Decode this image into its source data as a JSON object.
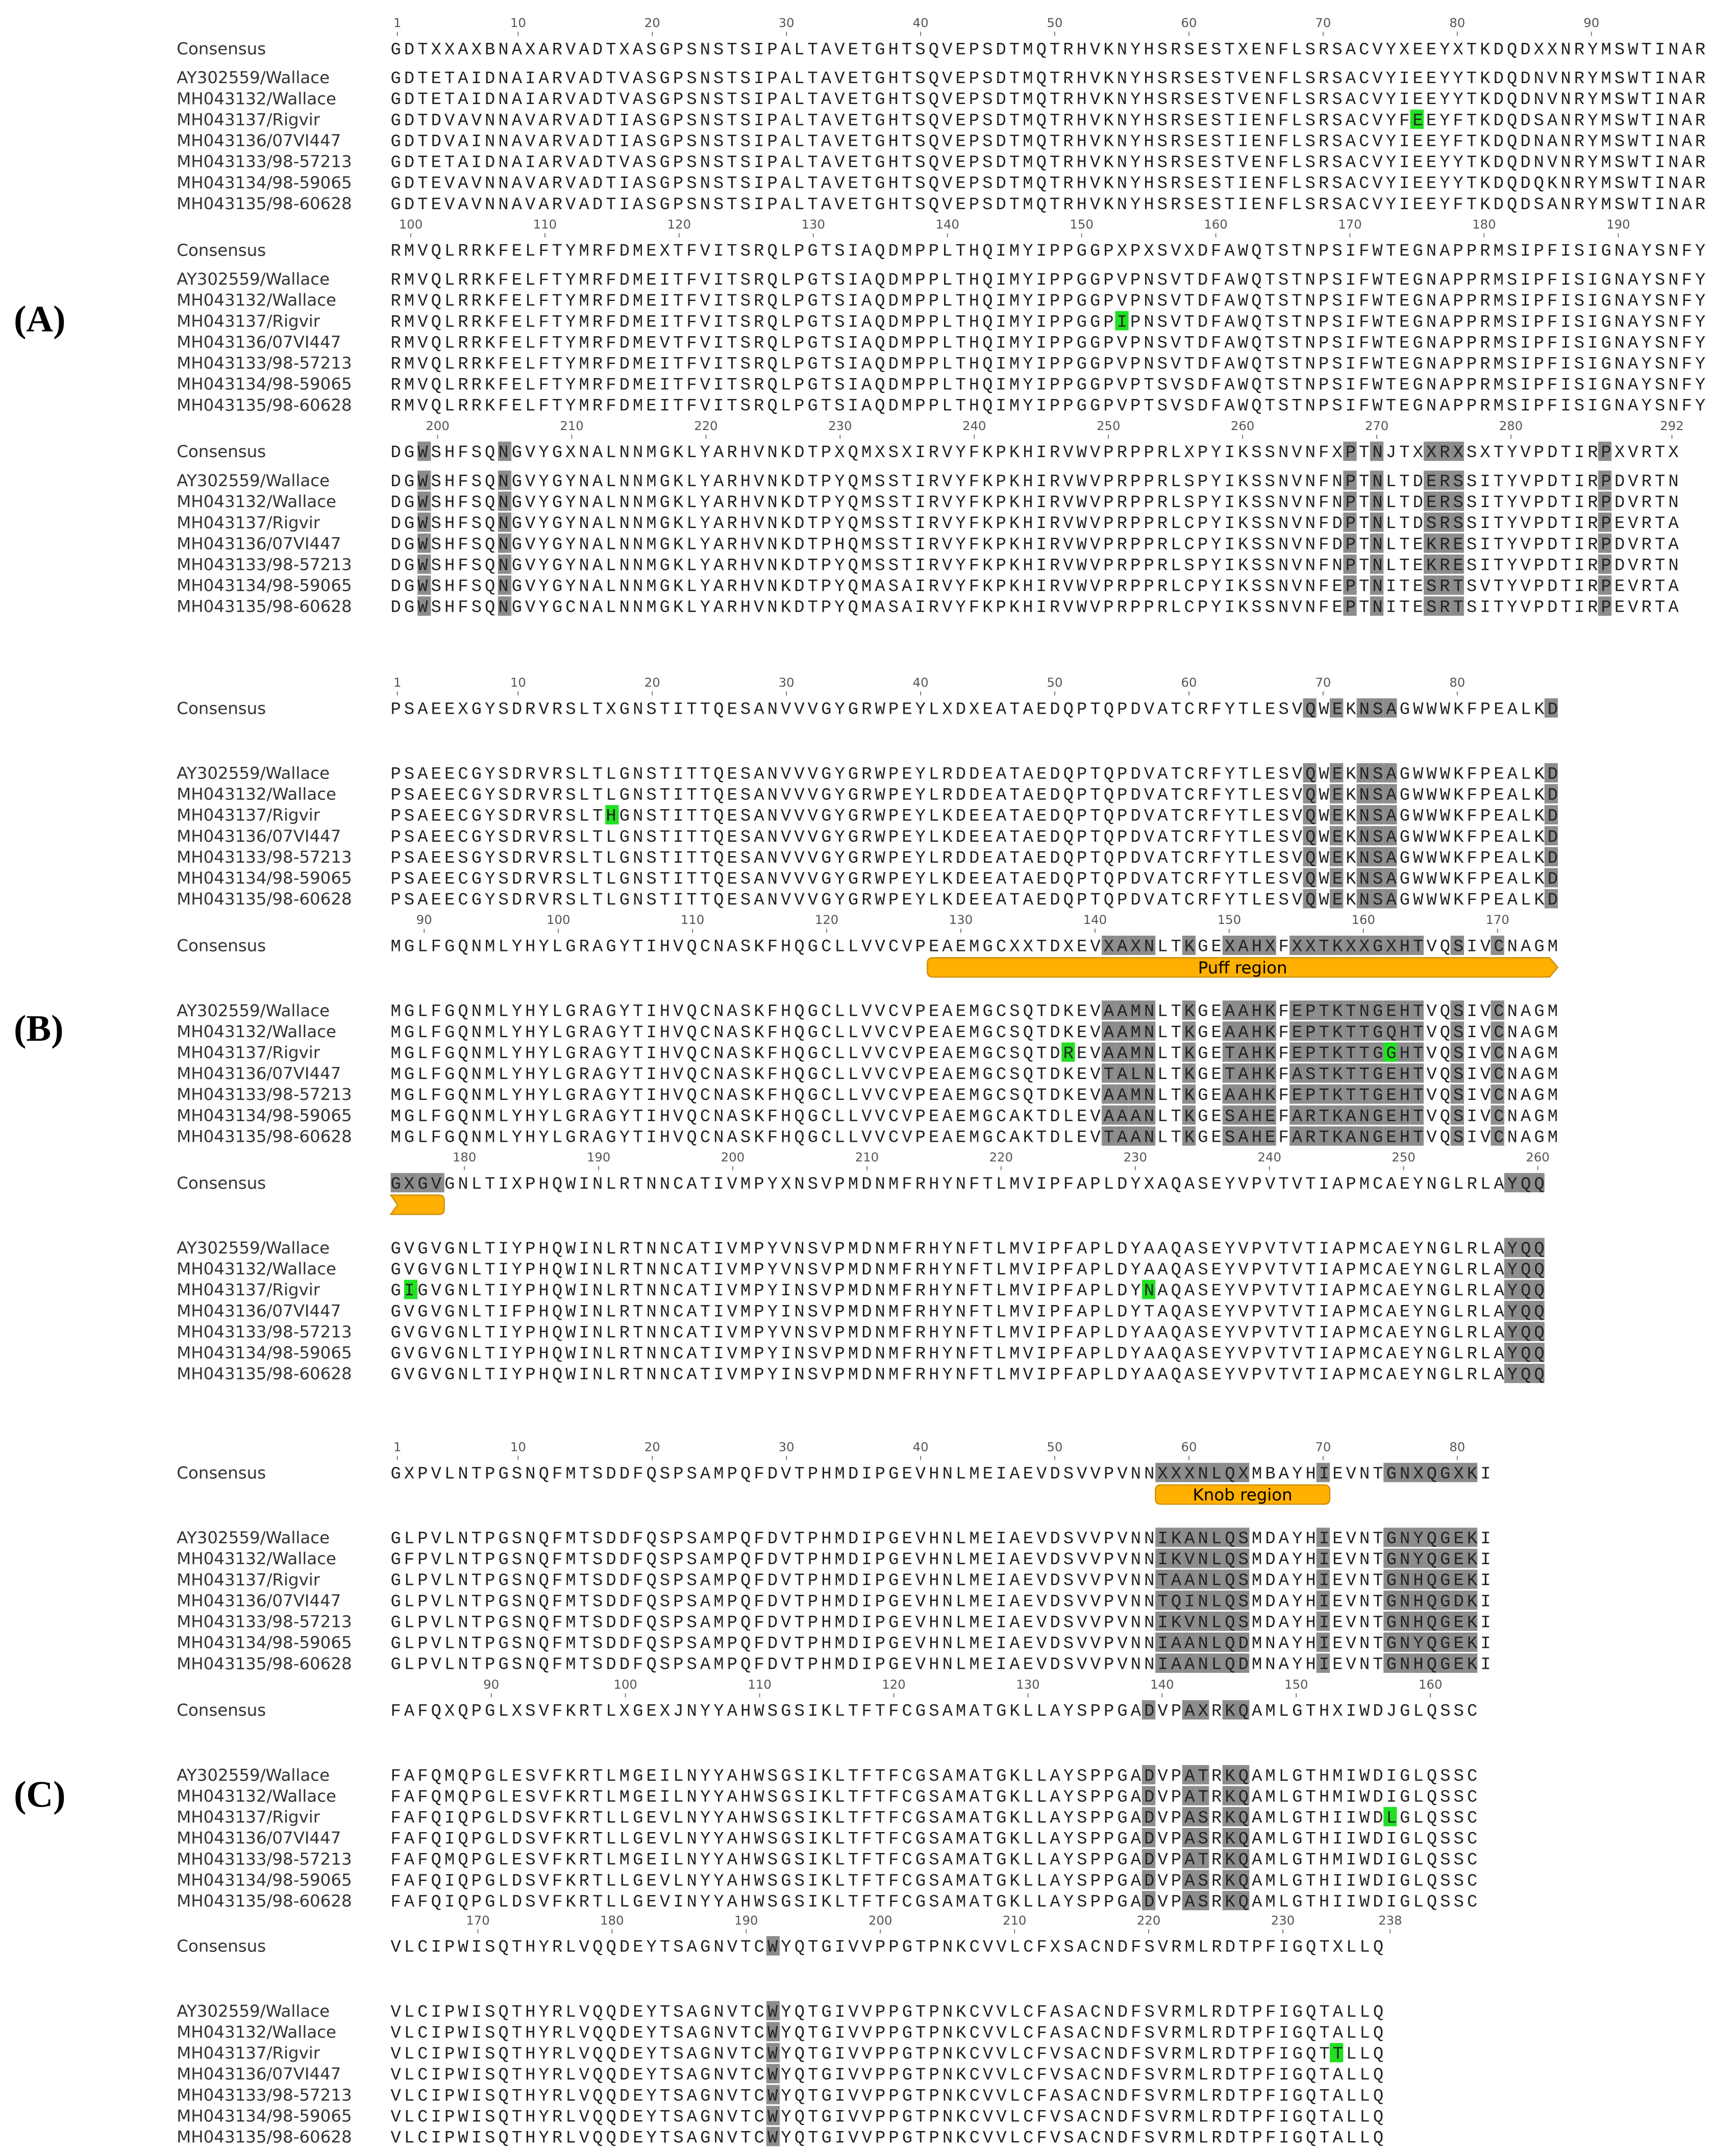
{
  "consensus_label": "Consensus",
  "names": [
    "AY302559/Wallace",
    "MH043132/Wallace",
    "MH043137/Rigvir",
    "MH043136/07VI447",
    "MH043133/98-57213",
    "MH043134/98-59065",
    "MH043135/98-60628"
  ],
  "panels": [
    {
      "label": "(A)",
      "blocks": [
        {
          "ticks": [
            1,
            10,
            20,
            30,
            40,
            50,
            60,
            70,
            80,
            90
          ],
          "consensus": "GDTXXAXBNAXARVADTXASGPSNSTSIPALTAVETGHTSQVEPSDTMQTRHVKNYHSRSESTXENFLSRSACVYXEEYXTKDQDXXNRYMSWTINAR",
          "rows": [
            "GDTETAIDNAIARVADTVASGPSNSTSIPALTAVETGHTSQVEPSDTMQTRHVKNYHSRSESTVENFLSRSACVYIEEYYTKDQDNVNRYMSWTINAR",
            "GDTETAIDNAIARVADTVASGPSNSTSIPALTAVETGHTSQVEPSDTMQTRHVKNYHSRSESTVENFLSRSACVYIEEYYTKDQDNVNRYMSWTINAR",
            "GDTDVAVNNAVARVADTIASGPSNSTSIPALTAVETGHTSQVEPSDTMQTRHVKNYHSRSESTIENFLSRSACVYFEEYFTKDQDSANRYMSWTINAR",
            "GDTDVAINNAVARVADTIASGPSNSTSIPALTAVETGHTSQVEPSDTMQTRHVKNYHSRSESTIENFLSRSACVYIEEYFTKDQDNANRYMSWTINAR",
            "GDTETAIDNAIARVADTVASGPSNSTSIPALTAVETGHTSQVEPSDTMQTRHVKNYHSRSESTVENFLSRSACVYIEEYYTKDQDNVNRYMSWTINAR",
            "GDTEVAVNNAVARVADTIASGPSNSTSIPALTAVETGHTSQVEPSDTMQTRHVKNYHSRSESTIENFLSRSACVYIEEYYTKDQDQKNRYMSWTINAR",
            "GDTEVAVNNAVARVADTIASGPSNSTSIPALTAVETGHTSQVEPSDTMQTRHVKNYHSRSESTIENFLSRSACVYIEEYFTKDQDSANRYMSWTINAR"
          ]
        },
        {
          "ticks": [
            100,
            110,
            120,
            130,
            140,
            150,
            160,
            170,
            180,
            190
          ],
          "consensus": "RMVQLRRKFELFTYMRFDMEXTFVITSRQLPGTSIAQDMPPLTHQIMYIPPGGPXPXSVXDFAWQTSTNPSIFWTEGNAPPRMSIPFISIGNAYSNFY",
          "rows": [
            "RMVQLRRKFELFTYMRFDMEITFVITSRQLPGTSIAQDMPPLTHQIMYIPPGGPVPNSVTDFAWQTSTNPSIFWTEGNAPPRMSIPFISIGNAYSNFY",
            "RMVQLRRKFELFTYMRFDMEITFVITSRQLPGTSIAQDMPPLTHQIMYIPPGGPVPNSVTDFAWQTSTNPSIFWTEGNAPPRMSIPFISIGNAYSNFY",
            "RMVQLRRKFELFTYMRFDMEITFVITSRQLPGTSIAQDMPPLTHQIMYIPPGGPIPNSVTDFAWQTSTNPSIFWTEGNAPPRMSIPFISIGNAYSNFY",
            "RMVQLRRKFELFTYMRFDMEVTFVITSRQLPGTSIAQDMPPLTHQIMYIPPGGPVPNSVTDFAWQTSTNPSIFWTEGNAPPRMSIPFISIGNAYSNFY",
            "RMVQLRRKFELFTYMRFDMEITFVITSRQLPGTSIAQDMPPLTHQIMYIPPGGPVPNSVTDFAWQTSTNPSIFWTEGNAPPRMSIPFISIGNAYSNFY",
            "RMVQLRRKFELFTYMRFDMEITFVITSRQLPGTSIAQDMPPLTHQIMYIPPGGPVPTSVSDFAWQTSTNPSIFWTEGNAPPRMSIPFISIGNAYSNFY",
            "RMVQLRRKFELFTYMRFDMEITFVITSRQLPGTSIAQDMPPLTHQIMYIPPGGPVPTSVSDFAWQTSTNPSIFWTEGNAPPRMSIPFISIGNAYSNFY"
          ]
        },
        {
          "ticks": [
            200,
            210,
            220,
            230,
            240,
            250,
            260,
            270,
            280,
            292
          ],
          "consensus": "DGWSHFSQNGVYGXNALNNMGKLYARHVNKDTPXQMXSXIRVYFKPKHIRVWVPRPPRLXPYIKSSNVNFXPTNJTXXRXSXTYVPDTIRPXVRTX",
          "rows": [
            "DGWSHFSQNGVYGYNALNNMGKLYARHVNKDTPYQMSSTIRVYFKPKHIRVWVPRPPRLSPYIKSSNVNFNPTNLTDERSSITYVPDTIRPDVRTN",
            "DGWSHFSQNGVYGYNALNNMGKLYARHVNKDTPYQMSSTIRVYFKPKHIRVWVPRPPRLSPYIKSSNVNFNPTNLTDERSSITYVPDTIRPDVRTN",
            "DGWSHFSQNGVYGYNALNNMGKLYARHVNKDTPYQMSSTIRVYFKPKHIRVWVPRPPRLCPYIKSSNVNFDPTNLTDSRSSITYVPDTIRPEVRTA",
            "DGWSHFSQNGVYGYNALNNMGKLYARHVNKDTPHQMSSTIRVYFKPKHIRVWVPRPPRLCPYIKSSNVNFDPTNLTEKRESITYVPDTIRPDVRTA",
            "DGWSHFSQNGVYGYNALNNMGKLYARHVNKDTPYQMSSTIRVYFKPKHIRVWVPRPPRLSPYIKSSNVNFNPTNLTEKRESITYVPDTIRPDVRTN",
            "DGWSHFSQNGVYGYNALNNMGKLYARHVNKDTPYQMASAIRVYFKPKHIRVWVPRPPRLCPYIKSSNVNFEPTNITESRTSVTYVPDTIRPEVRTA",
            "DGWSHFSQNGVYGCNALNNMGKLYARHVNKDTPYQMASAIRVYFKPKHIRVWVPRPPRLCPYIKSSNVNFEPTNITESRTSITYVPDTIRPEVRTA"
          ]
        }
      ]
    },
    {
      "label": "(B)",
      "blocks": [
        {
          "ticks": [
            1,
            10,
            20,
            30,
            40,
            50,
            60,
            70,
            80
          ],
          "consensus": "PSAEEXGYSDRVRSLTXGNSTITTQESANVVVGYGRWPEYLXDXEATAEDQPTQPDVATCRFYTLESVQWEKNSAGWWWKFPEALKD",
          "rows": [
            "PSAEECGYSDRVRSLTLGNSTITTQESANVVVGYGRWPEYLRDDEATAEDQPTQPDVATCRFYTLESVQWEKNSAGWWWKFPEALKD",
            "PSAEECGYSDRVRSLTLGNSTITTQESANVVVGYGRWPEYLRDDEATAEDQPTQPDVATCRFYTLESVQWEKNSAGWWWKFPEALKD",
            "PSAEECGYSDRVRSLTHGNSTITTQESANVVVGYGRWPEYLKDEEATAEDQPTQPDVATCRFYTLESVQWEKNSAGWWWKFPEALKD",
            "PSAEECGYSDRVRSLTLGNSTITTQESANVVVGYGRWPEYLKDEEATAEDQPTQPDVATCRFYTLESVQWEKNSAGWWWKFPEALKD",
            "PSAEESGYSDRVRSLTLGNSTITTQESANVVVGYGRWPEYLRDDEATAEDQPTQPDVATCRFYTLESVQWEKNSAGWWWKFPEALKD",
            "PSAEECGYSDRVRSLTLGNSTITTQESANVVVGYGRWPEYLKDEEATAEDQPTQPDVATCRFYTLESVQWEKNSAGWWWKFPEALKD",
            "PSAEECGYSDRVRSLTLGNSTITTQESANVVVGYGRWPEYLKDEEATAEDQPTQPDVATCRFYTLESVQWEKNSAGWWWKFPEALKD"
          ]
        },
        {
          "ticks": [
            90,
            100,
            110,
            120,
            130,
            140,
            150,
            160,
            170
          ],
          "annotation": "Puff region",
          "consensus": "MGLFGQNMLYHYLGRAGYTIHVQCNASKFHQGCLLVVCVPEAEMGCXXTDXEVXAXNLTKGEXAHXFXXTKXXGXHTVQSIVCNAGM",
          "rows": [
            "MGLFGQNMLYHYLGRAGYTIHVQCNASKFHQGCLLVVCVPEAEMGCSQTDKEVAAMNLTKGEAAHKFEPTKTNGEHTVQSIVCNAGM",
            "MGLFGQNMLYHYLGRAGYTIHVQCNASKFHQGCLLVVCVPEAEMGCSQTDKEVAAMNLTKGEAAHKFEPTKTTGQHTVQSIVCNAGM",
            "MGLFGQNMLYHYLGRAGYTIHVQCNASKFHQGCLLVVCVPEAEMGCSQTDREVAAMNLTKGETAHKFEPTKTTGGHTVQSIVCNAGM",
            "MGLFGQNMLYHYLGRAGYTIHVQCNASKFHQGCLLVVCVPEAEMGCSQTDKEVTALNLTKGETAHKFASTKTTGEHTVQSIVCNAGM",
            "MGLFGQNMLYHYLGRAGYTIHVQCNASKFHQGCLLVVCVPEAEMGCSQTDKEVAAMNLTKGEAAHKFEPTKTTGEHTVQSIVCNAGM",
            "MGLFGQNMLYHYLGRAGYTIHVQCNASKFHQGCLLVVCVPEAEMGCAKTDLEVAAANLTKGESAHEFARTKANGEHTVQSIVCNAGM",
            "MGLFGQNMLYHYLGRAGYTIHVQCNASKFHQGCLLVVCVPEAEMGCAKTDLEVTAANLTKGESAHEFARTKANGEHTVQSIVCNAGM"
          ]
        },
        {
          "ticks": [
            180,
            190,
            200,
            210,
            220,
            230,
            240,
            250,
            260
          ],
          "consensus": "GXGVGNLTIXPHQWINLRTNNCATIVMPYXNSVPMDNMFRHYNFTLMVIPFAPLDYXAQASEYVPVTVTIAPMCAEYNGLRLAYQQ",
          "rows": [
            "GVGVGNLTIYPHQWINLRTNNCATIVMPYVNSVPMDNMFRHYNFTLMVIPFAPLDYAAQASEYVPVTVTIAPMCAEYNGLRLAYQQ",
            "GVGVGNLTIYPHQWINLRTNNCATIVMPYVNSVPMDNMFRHYNFTLMVIPFAPLDYAAQASEYVPVTVTIAPMCAEYNGLRLAYQQ",
            "GIGVGNLTIYPHQWINLRTNNCATIVMPYINSVPMDNMFRHYNFTLMVIPFAPLDYNAQASEYVPVTVTIAPMCAEYNGLRLAYQQ",
            "GVGVGNLTIFPHQWINLRTNNCATIVMPYINSVPMDNMFRHYNFTLMVIPFAPLDYTAQASEYVPVTVTIAPMCAEYNGLRLAYQQ",
            "GVGVGNLTIYPHQWINLRTNNCATIVMPYVNSVPMDNMFRHYNFTLMVIPFAPLDYAAQASEYVPVTVTIAPMCAEYNGLRLAYQQ",
            "GVGVGNLTIYPHQWINLRTNNCATIVMPYINSVPMDNMFRHYNFTLMVIPFAPLDYAAQASEYVPVTVTIAPMCAEYNGLRLAYQQ",
            "GVGVGNLTIYPHQWINLRTNNCATIVMPYINSVPMDNMFRHYNFTLMVIPFAPLDYAAQASEYVPVTVTIAPMCAEYNGLRLAYQQ"
          ]
        }
      ]
    },
    {
      "label": "(C)",
      "blocks": [
        {
          "ticks": [
            1,
            10,
            20,
            30,
            40,
            50,
            60,
            70,
            80
          ],
          "annotation": "Knob region",
          "consensus": "GXPVLNTPGSNQFMTSDDFQSPSAMPQFDVTPHMDIPGEVHNLMEIAEVDSVVPVNNXXXNLQXMBAYHIEVNTGNXQGXKI",
          "rows": [
            "GLPVLNTPGSNQFMTSDDFQSPSAMPQFDVTPHMDIPGEVHNLMEIAEVDSVVPVNNIKANLQSMDAYHIEVNTGNYQGEKI",
            "GFPVLNTPGSNQFMTSDDFQSPSAMPQFDVTPHMDIPGEVHNLMEIAEVDSVVPVNNIKVNLQSMDAYHIEVNTGNYQGEKI",
            "GLPVLNTPGSNQFMTSDDFQSPSAMPQFDVTPHMDIPGEVHNLMEIAEVDSVVPVNNTAANLQSMDAYHIEVNTGNHQGEKI",
            "GLPVLNTPGSNQFMTSDDFQSPSAMPQFDVTPHMDIPGEVHNLMEIAEVDSVVPVNNTQINLQSMDAYHIEVNTGNHQGDKI",
            "GLPVLNTPGSNQFMTSDDFQSPSAMPQFDVTPHMDIPGEVHNLMEIAEVDSVVPVNNIKVNLQSMDAYHIEVNTGNHQGEKI",
            "GLPVLNTPGSNQFMTSDDFQSPSAMPQFDVTPHMDIPGEVHNLMEIAEVDSVVPVNNIAANLQDMNAYHIEVNTGNYQGEKI",
            "GLPVLNTPGSNQFMTSDDFQSPSAMPQFDVTPHMDIPGEVHNLMEIAEVDSVVPVNNIAANLQDMNAYHIEVNTGNHQGEKI"
          ]
        },
        {
          "ticks": [
            90,
            100,
            110,
            120,
            130,
            140,
            150,
            160
          ],
          "consensus": "FAFQXQPGLXSVFKRTLXGEXJNYYAHWSGSIKLTFTFCGSAMATGKLLAYSPPGADVPAXRKQAMLGTHXIWDJGLQSSC",
          "rows": [
            "FAFQMQPGLESVFKRTLMGEILNYYAHWSGSIKLTFTFCGSAMATGKLLAYSPPGADVPATRKQAMLGTHMIWDIGLQSSC",
            "FAFQMQPGLESVFKRTLMGEILNYYAHWSGSIKLTFTFCGSAMATGKLLAYSPPGADVPATRKQAMLGTHMIWDIGLQSSC",
            "FAFQIQPGLDSVFKRTLLGEVLNYYAHWSGSIKLTFTFCGSAMATGKLLAYSPPGADVPASRKQAMLGTHIIWDLGLQSSC",
            "FAFQIQPGLDSVFKRTLLGEVLNYYAHWSGSIKLTFTFCGSAMATGKLLAYSPPGADVPASRKQAMLGTHIIWDIGLQSSC",
            "FAFQMQPGLESVFKRTLMGEILNYYAHWSGSIKLTFTFCGSAMATGKLLAYSPPGADVPATRKQAMLGTHMIWDIGLQSSC",
            "FAFQIQPGLDSVFKRTLLGEVLNYYAHWSGSIKLTFTFCGSAMATGKLLAYSPPGADVPASRKQAMLGTHIIWDIGLQSSC",
            "FAFQIQPGLDSVFKRTLLGEVINYYAHWSGSIKLTFTFCGSAMATGKLLAYSPPGADVPASRKQAMLGTHIIWDIGLQSSC"
          ]
        },
        {
          "ticks": [
            170,
            180,
            190,
            200,
            210,
            220,
            230,
            238
          ],
          "consensus": "VLCIPWISQTHYRLVQQDEYTSAGNVTCWYQTGIVVPPGTPNKCVVLCFXSACNDFSVRMLRDTPFIGQTXLLQ",
          "rows": [
            "VLCIPWISQTHYRLVQQDEYTSAGNVTCWYQTGIVVPPGTPNKCVVLCFASACNDFSVRMLRDTPFIGQTALLQ",
            "VLCIPWISQTHYRLVQQDEYTSAGNVTCWYQTGIVVPPGTPNKCVVLCFASACNDFSVRMLRDTPFIGQTALLQ",
            "VLCIPWISQTHYRLVQQDEYTSAGNVTCWYQTGIVVPPGTPNKCVVLCFVSACNDFSVRMLRDTPFIGQTTLLQ",
            "VLCIPWISQTHYRLVQQDEYTSAGNVTCWYQTGIVVPPGTPNKCVVLCFVSACNDFSVRMLRDTPFIGQTALLQ",
            "VLCIPWISQTHYRLVQQDEYTSAGNVTCWYQTGIVVPPGTPNKCVVLCFASACNDFSVRMLRDTPFIGQTALLQ",
            "VLCIPWISQTHYRLVQQDEYTSAGNVTCWYQTGIVVPPGTPNKCVVLCFVSACNDFSVRMLRDTPFIGQTALLQ",
            "VLCIPWISQTHYRLVQQDEYTSAGNVTCWYQTGIVVPPGTPNKCVVLCFVSACNDFSVRMLRDTPFIGQTALLQ"
          ]
        }
      ]
    }
  ]
}
